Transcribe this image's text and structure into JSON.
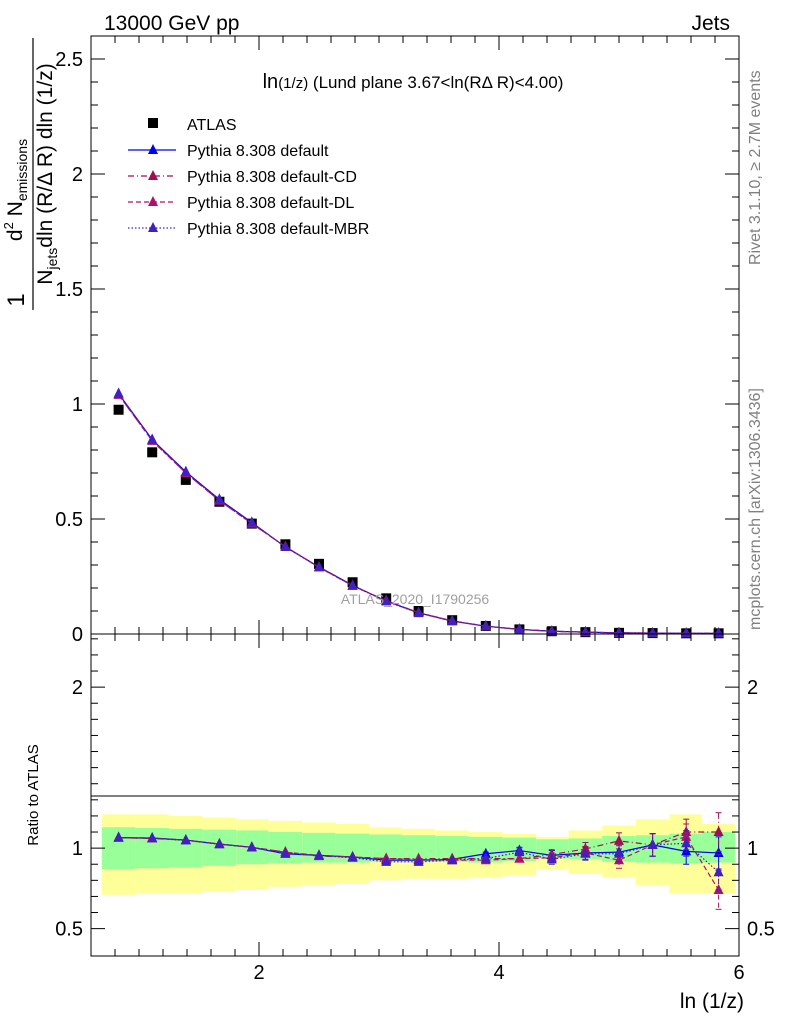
{
  "header": {
    "energy_label": "13000 GeV pp",
    "process_label": "Jets",
    "rivet_label": "Rivet 3.1.10, ≥ 2.7M events",
    "site_label": "mcplots.cern.ch [arXiv:1306.3436]",
    "analysis_label": "ATLAS_2020_I1790256"
  },
  "chart_data": [
    {
      "panel": "main",
      "type": "scatter",
      "title_main": "ln",
      "title_sub": "(1/z)",
      "title_rest": " (Lund plane 3.67<ln(RΔ R)<4.00)",
      "ylabel": "1/N_jets dN_emissions / dln(R/ΔR) dln(1/z)",
      "ylabel_parts": {
        "num_d": "d",
        "num_sup": "2",
        "num_N": " N",
        "num_sub": "emissions",
        "den_N": "N",
        "den_sub": "jets",
        "den_rest": "dln (R/Δ R) dln (1/z)",
        "one": "1"
      },
      "xlim": [
        0.6,
        6.0
      ],
      "ylim": [
        0,
        2.6
      ],
      "yticks": [
        0,
        0.5,
        1,
        1.5,
        2,
        2.5
      ],
      "ytick_labels": [
        "0",
        "0.5",
        "1",
        "1.5",
        "2",
        "2.5"
      ],
      "x": [
        0.83,
        1.11,
        1.39,
        1.67,
        1.94,
        2.22,
        2.5,
        2.78,
        3.06,
        3.33,
        3.61,
        3.89,
        4.17,
        4.44,
        4.72,
        5.0,
        5.28,
        5.56,
        5.83
      ],
      "series": [
        {
          "name": "ATLAS",
          "color": "#000000",
          "marker": "square",
          "dash": "none",
          "values": [
            0.975,
            0.79,
            0.67,
            0.575,
            0.48,
            0.39,
            0.305,
            0.225,
            0.155,
            0.1,
            0.06,
            0.035,
            0.02,
            0.012,
            0.008,
            0.005,
            0.004,
            0.003,
            0.003
          ]
        },
        {
          "name": "Pythia 8.308 default",
          "color": "#0000ee",
          "marker": "triangle",
          "dash": "solid",
          "values": [
            1.045,
            0.845,
            0.705,
            0.585,
            0.485,
            0.378,
            0.292,
            0.212,
            0.143,
            0.092,
            0.056,
            0.034,
            0.02,
            0.012,
            0.008,
            0.005,
            0.004,
            0.003,
            0.003
          ]
        },
        {
          "name": "Pythia 8.308 default-CD",
          "color": "#a01050",
          "marker": "triangle",
          "dash": "dashdot",
          "values": [
            1.04,
            0.84,
            0.7,
            0.58,
            0.48,
            0.38,
            0.29,
            0.21,
            0.145,
            0.093,
            0.057,
            0.034,
            0.02,
            0.012,
            0.008,
            0.005,
            0.004,
            0.003,
            0.003
          ]
        },
        {
          "name": "Pythia 8.308 default-DL",
          "color": "#b0106a",
          "marker": "triangle",
          "dash": "dashed",
          "values": [
            1.04,
            0.84,
            0.7,
            0.58,
            0.48,
            0.38,
            0.29,
            0.21,
            0.145,
            0.093,
            0.057,
            0.034,
            0.02,
            0.012,
            0.008,
            0.005,
            0.004,
            0.003,
            0.003
          ]
        },
        {
          "name": "Pythia 8.308 default-MBR",
          "color": "#4020c0",
          "marker": "triangle",
          "dash": "dotted",
          "values": [
            1.045,
            0.845,
            0.705,
            0.585,
            0.485,
            0.378,
            0.29,
            0.21,
            0.142,
            0.091,
            0.056,
            0.034,
            0.02,
            0.012,
            0.008,
            0.005,
            0.004,
            0.003,
            0.003
          ]
        }
      ],
      "legend": "top-left"
    },
    {
      "panel": "ratio",
      "type": "line",
      "ylabel": "Ratio to ATLAS",
      "xlabel": "ln (1/z)",
      "xlim": [
        0.6,
        6.0
      ],
      "ylim": [
        0.33,
        2.33
      ],
      "xticks": [
        2,
        4,
        6
      ],
      "xtick_labels": [
        "2",
        "4",
        "6"
      ],
      "yticks": [
        0.5,
        1,
        2
      ],
      "ytick_labels": [
        "0.5",
        "1",
        "2"
      ],
      "bin_edges": [
        0.69,
        0.97,
        1.25,
        1.53,
        1.81,
        2.08,
        2.36,
        2.64,
        2.92,
        3.19,
        3.47,
        3.75,
        4.03,
        4.31,
        4.58,
        4.86,
        5.14,
        5.42,
        5.69,
        5.97
      ],
      "band_stat_lo": [
        0.87,
        0.875,
        0.88,
        0.89,
        0.9,
        0.905,
        0.91,
        0.91,
        0.915,
        0.915,
        0.915,
        0.91,
        0.92,
        0.935,
        0.93,
        0.915,
        0.91,
        0.905,
        0.91
      ],
      "band_stat_hi": [
        1.13,
        1.125,
        1.12,
        1.115,
        1.11,
        1.1,
        1.095,
        1.09,
        1.085,
        1.08,
        1.075,
        1.07,
        1.065,
        1.055,
        1.06,
        1.075,
        1.08,
        1.09,
        1.1
      ],
      "band_syst_lo": [
        0.71,
        0.72,
        0.72,
        0.73,
        0.74,
        0.76,
        0.77,
        0.78,
        0.8,
        0.81,
        0.81,
        0.82,
        0.83,
        0.87,
        0.84,
        0.82,
        0.77,
        0.72,
        0.72
      ],
      "band_syst_hi": [
        1.21,
        1.21,
        1.2,
        1.19,
        1.18,
        1.17,
        1.16,
        1.15,
        1.13,
        1.12,
        1.11,
        1.1,
        1.09,
        1.07,
        1.11,
        1.14,
        1.18,
        1.21,
        1.15
      ],
      "x": [
        0.83,
        1.11,
        1.39,
        1.67,
        1.94,
        2.22,
        2.5,
        2.78,
        3.06,
        3.33,
        3.61,
        3.89,
        4.17,
        4.44,
        4.72,
        5.0,
        5.28,
        5.56,
        5.83
      ],
      "series": [
        {
          "name": "Pythia 8.308 default",
          "color": "#0000ee",
          "dash": "solid",
          "values": [
            1.065,
            1.063,
            1.05,
            1.025,
            1.005,
            0.965,
            0.955,
            0.945,
            0.925,
            0.925,
            0.93,
            0.965,
            0.985,
            0.955,
            0.97,
            0.975,
            1.02,
            0.98,
            0.97
          ],
          "errors": [
            0,
            0,
            0,
            0,
            0,
            0,
            0,
            0,
            0,
            0,
            0,
            0.01,
            0.02,
            0.03,
            0.04,
            0.05,
            0.07,
            0.08,
            0.1
          ]
        },
        {
          "name": "Pythia 8.308 default-CD",
          "color": "#a01050",
          "dash": "dashdot",
          "values": [
            1.065,
            1.06,
            1.05,
            1.025,
            1.005,
            0.975,
            0.95,
            0.945,
            0.935,
            0.935,
            0.935,
            0.935,
            0.935,
            0.96,
            0.995,
            1.045,
            1.02,
            1.1,
            1.1
          ],
          "errors": [
            0,
            0,
            0,
            0,
            0,
            0,
            0,
            0,
            0,
            0,
            0,
            0.01,
            0.02,
            0.03,
            0.04,
            0.05,
            0.07,
            0.08,
            0.12
          ]
        },
        {
          "name": "Pythia 8.308 default-DL",
          "color": "#b0106a",
          "dash": "dashed",
          "values": [
            1.065,
            1.06,
            1.05,
            1.025,
            1.005,
            0.975,
            0.955,
            0.945,
            0.935,
            0.93,
            0.925,
            0.925,
            0.935,
            0.94,
            0.97,
            0.925,
            1.02,
            1.07,
            0.74
          ],
          "errors": [
            0,
            0,
            0,
            0,
            0,
            0,
            0,
            0,
            0,
            0,
            0,
            0.01,
            0.02,
            0.03,
            0.04,
            0.05,
            0.07,
            0.08,
            0.12
          ]
        },
        {
          "name": "Pythia 8.308 default-MBR",
          "color": "#4020c0",
          "dash": "dotted",
          "values": [
            1.065,
            1.062,
            1.048,
            1.025,
            1.005,
            0.965,
            0.955,
            0.94,
            0.915,
            0.915,
            0.925,
            0.935,
            0.975,
            0.93,
            0.965,
            0.965,
            1.02,
            1.03,
            0.85
          ],
          "errors": [
            0,
            0,
            0,
            0,
            0,
            0,
            0,
            0,
            0,
            0,
            0,
            0.01,
            0.02,
            0.03,
            0.04,
            0.05,
            0.07,
            0.08,
            0.11
          ]
        }
      ]
    }
  ]
}
